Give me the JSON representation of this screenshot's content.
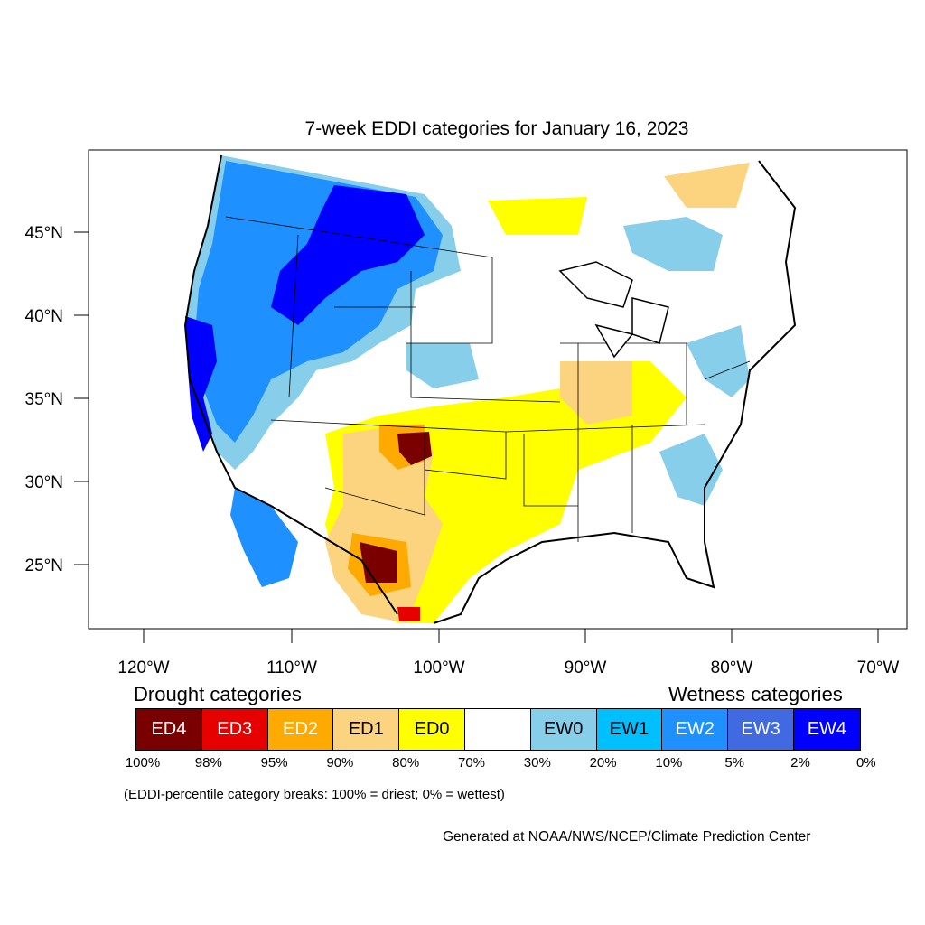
{
  "title": "7-week EDDI categories for January 16, 2023",
  "map": {
    "lat_labels": [
      "45°N",
      "40°N",
      "35°N",
      "30°N",
      "25°N"
    ],
    "lon_labels": [
      "120°W",
      "110°W",
      "100°W",
      "90°W",
      "80°W",
      "70°W"
    ]
  },
  "legend": {
    "drought_title": "Drought categories",
    "wetness_title": "Wetness categories",
    "categories": [
      {
        "label": "ED4",
        "color": "#7a0000",
        "text_color": "#ffffff"
      },
      {
        "label": "ED3",
        "color": "#e60000",
        "text_color": "#ffffff"
      },
      {
        "label": "ED2",
        "color": "#ffaa00",
        "text_color": "#ffffff"
      },
      {
        "label": "ED1",
        "color": "#fcd37f",
        "text_color": "#000000"
      },
      {
        "label": "ED0",
        "color": "#ffff00",
        "text_color": "#000000"
      },
      {
        "label": "",
        "color": "#ffffff",
        "text_color": "#000000"
      },
      {
        "label": "EW0",
        "color": "#87ceeb",
        "text_color": "#000000"
      },
      {
        "label": "EW1",
        "color": "#00bfff",
        "text_color": "#000000"
      },
      {
        "label": "EW2",
        "color": "#1e90ff",
        "text_color": "#ffffff"
      },
      {
        "label": "EW3",
        "color": "#4169e1",
        "text_color": "#ffffff"
      },
      {
        "label": "EW4",
        "color": "#0000ff",
        "text_color": "#ffffff"
      }
    ],
    "breaks": [
      "100%",
      "98%",
      "95%",
      "90%",
      "80%",
      "70%",
      "30%",
      "20%",
      "10%",
      "5%",
      "2%",
      "0%"
    ],
    "note": "(EDDI-percentile category breaks: 100% = driest; 0% = wettest)"
  },
  "credit": "Generated at NOAA/NWS/NCEP/Climate Prediction Center"
}
